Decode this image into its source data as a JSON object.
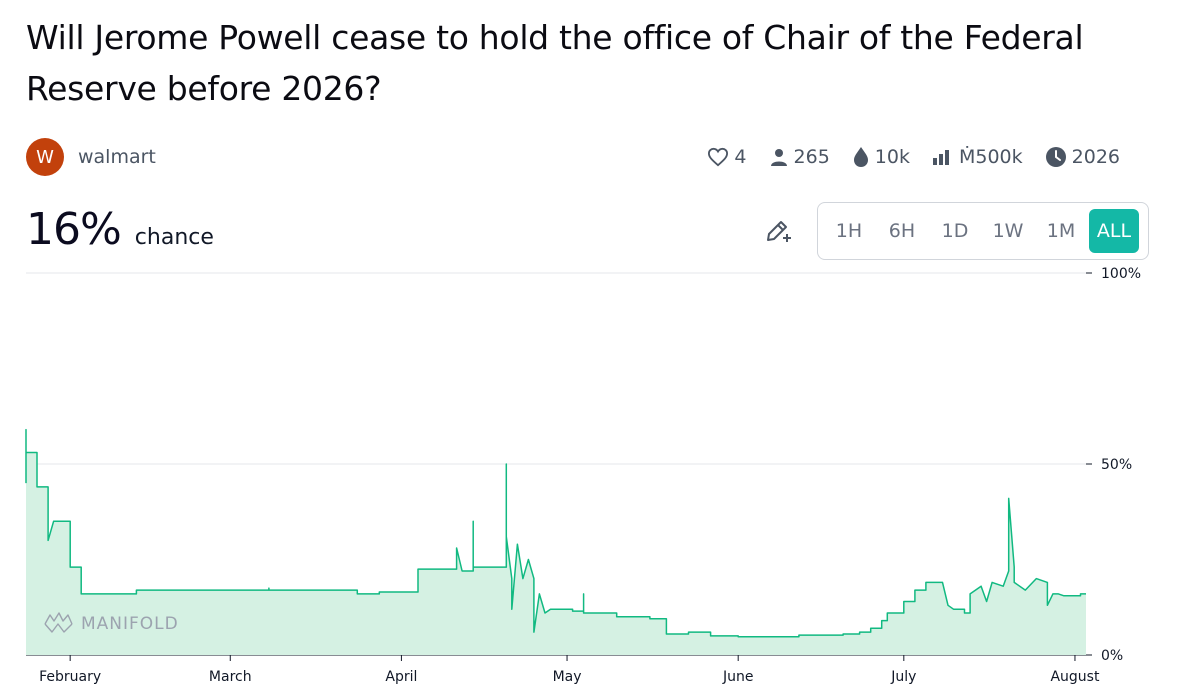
{
  "market": {
    "title": "Will Jerome Powell cease to hold the office of Chair of the Federal Reserve before 2026?",
    "creator_initial": "W",
    "creator_name": "walmart",
    "probability": "16%",
    "probability_label": "chance"
  },
  "stats": {
    "likes": "4",
    "traders": "265",
    "liquidity": "10k",
    "volume": "Ṁ500k",
    "close": "2026"
  },
  "icons": [
    "heart-icon",
    "user-icon",
    "droplet-icon",
    "bar-chart-icon",
    "clock-icon",
    "edit-pencil-icon",
    "manifold-logo-icon"
  ],
  "time_ranges": [
    "1H",
    "6H",
    "1D",
    "1W",
    "1M",
    "ALL"
  ],
  "selected_range": "ALL",
  "watermark": "MANIFOLD",
  "colors": {
    "line": "#11b981",
    "area": "#d5f1e3",
    "accent": "#14b8a6",
    "avatar": "#c2410c"
  },
  "chart_data": {
    "type": "line",
    "x_unit": "date",
    "xlim": [
      "2024-01-24",
      "2024-08-03"
    ],
    "ylim": [
      0,
      100
    ],
    "y_ticks": [
      "100%",
      "50%",
      "0%"
    ],
    "x_ticks": [
      {
        "label": "February",
        "x": "2024-02-01"
      },
      {
        "label": "March",
        "x": "2024-03-01"
      },
      {
        "label": "April",
        "x": "2024-04-01"
      },
      {
        "label": "May",
        "x": "2024-05-01"
      },
      {
        "label": "June",
        "x": "2024-06-01"
      },
      {
        "label": "July",
        "x": "2024-07-01"
      },
      {
        "label": "August",
        "x": "2024-08-01"
      }
    ],
    "series": [
      {
        "step": true,
        "points": [
          [
            "2024-01-24",
            45
          ],
          [
            "2024-01-24",
            59
          ],
          [
            "2024-01-24",
            53
          ],
          [
            "2024-01-26",
            53
          ],
          [
            "2024-01-26",
            44
          ],
          [
            "2024-01-28",
            44
          ],
          [
            "2024-01-28",
            30
          ],
          [
            "2024-01-29",
            35
          ],
          [
            "2024-02-01",
            35
          ],
          [
            "2024-02-01",
            23
          ],
          [
            "2024-02-03",
            23
          ],
          [
            "2024-02-03",
            16
          ],
          [
            "2024-02-13",
            16
          ],
          [
            "2024-02-13",
            17
          ],
          [
            "2024-03-08",
            17
          ],
          [
            "2024-03-08",
            17.5
          ],
          [
            "2024-03-08",
            17
          ],
          [
            "2024-03-24",
            17
          ],
          [
            "2024-03-24",
            16
          ],
          [
            "2024-03-28",
            16
          ],
          [
            "2024-03-28",
            16.5
          ],
          [
            "2024-04-04",
            16.5
          ],
          [
            "2024-04-04",
            22.5
          ],
          [
            "2024-04-11",
            22.5
          ],
          [
            "2024-04-11",
            28
          ],
          [
            "2024-04-12",
            22
          ],
          [
            "2024-04-14",
            22
          ],
          [
            "2024-04-14",
            35
          ],
          [
            "2024-04-14",
            23
          ],
          [
            "2024-04-20",
            23
          ],
          [
            "2024-04-20",
            50
          ],
          [
            "2024-04-20",
            31
          ],
          [
            "2024-04-21",
            20
          ],
          [
            "2024-04-21",
            12
          ],
          [
            "2024-04-22",
            29
          ],
          [
            "2024-04-23",
            20
          ],
          [
            "2024-04-24",
            25
          ],
          [
            "2024-04-25",
            20
          ],
          [
            "2024-04-25",
            6
          ],
          [
            "2024-04-26",
            16
          ],
          [
            "2024-04-27",
            11
          ],
          [
            "2024-04-28",
            12
          ],
          [
            "2024-05-02",
            12
          ],
          [
            "2024-05-02",
            11.5
          ],
          [
            "2024-05-04",
            11.5
          ],
          [
            "2024-05-04",
            16
          ],
          [
            "2024-05-04",
            11
          ],
          [
            "2024-05-10",
            11
          ],
          [
            "2024-05-10",
            10
          ],
          [
            "2024-05-16",
            10
          ],
          [
            "2024-05-16",
            9.5
          ],
          [
            "2024-05-19",
            9.5
          ],
          [
            "2024-05-19",
            5.5
          ],
          [
            "2024-05-23",
            5.5
          ],
          [
            "2024-05-23",
            6
          ],
          [
            "2024-05-27",
            6
          ],
          [
            "2024-05-27",
            5
          ],
          [
            "2024-06-01",
            5
          ],
          [
            "2024-06-01",
            4.8
          ],
          [
            "2024-06-12",
            4.8
          ],
          [
            "2024-06-12",
            5.2
          ],
          [
            "2024-06-20",
            5.2
          ],
          [
            "2024-06-20",
            5.5
          ],
          [
            "2024-06-23",
            5.5
          ],
          [
            "2024-06-23",
            6
          ],
          [
            "2024-06-25",
            6
          ],
          [
            "2024-06-25",
            7
          ],
          [
            "2024-06-27",
            7
          ],
          [
            "2024-06-27",
            9
          ],
          [
            "2024-06-28",
            9
          ],
          [
            "2024-06-28",
            11
          ],
          [
            "2024-07-01",
            11
          ],
          [
            "2024-07-01",
            14
          ],
          [
            "2024-07-03",
            14
          ],
          [
            "2024-07-03",
            17
          ],
          [
            "2024-07-05",
            17
          ],
          [
            "2024-07-05",
            19
          ],
          [
            "2024-07-06",
            19
          ],
          [
            "2024-07-08",
            19
          ],
          [
            "2024-07-09",
            13
          ],
          [
            "2024-07-10",
            12
          ],
          [
            "2024-07-12",
            12
          ],
          [
            "2024-07-12",
            11
          ],
          [
            "2024-07-13",
            11
          ],
          [
            "2024-07-13",
            16
          ],
          [
            "2024-07-15",
            18
          ],
          [
            "2024-07-16",
            14
          ],
          [
            "2024-07-17",
            19
          ],
          [
            "2024-07-19",
            18
          ],
          [
            "2024-07-20",
            22
          ],
          [
            "2024-07-20",
            41
          ],
          [
            "2024-07-21",
            23
          ],
          [
            "2024-07-21",
            19
          ],
          [
            "2024-07-23",
            17
          ],
          [
            "2024-07-25",
            20
          ],
          [
            "2024-07-27",
            19
          ],
          [
            "2024-07-27",
            13
          ],
          [
            "2024-07-28",
            16
          ],
          [
            "2024-07-29",
            16
          ],
          [
            "2024-07-30",
            15.5
          ],
          [
            "2024-08-02",
            15.5
          ],
          [
            "2024-08-02",
            16
          ],
          [
            "2024-08-03",
            16
          ]
        ]
      }
    ]
  }
}
